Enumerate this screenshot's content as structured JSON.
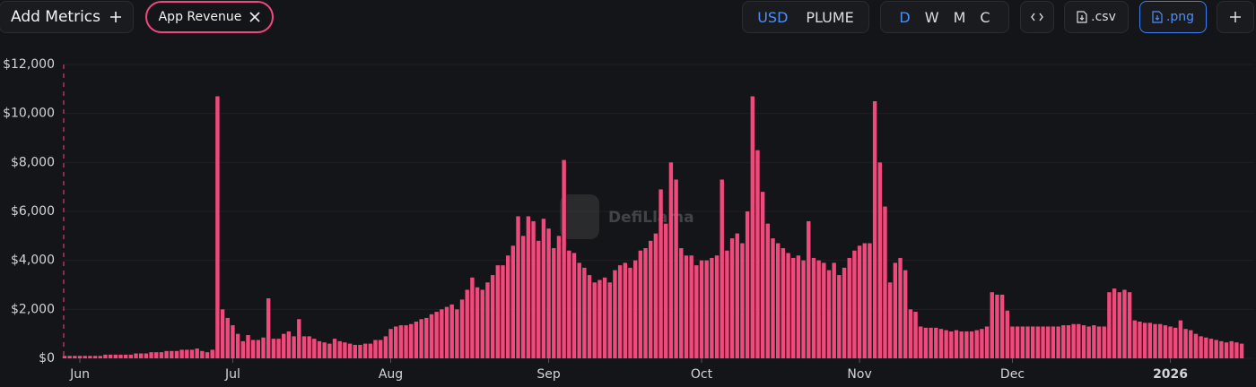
{
  "toolbar": {
    "add_metrics": "Add Metrics",
    "metric_chip": "App Revenue",
    "currency": [
      "USD",
      "PLUME"
    ],
    "intervals": [
      "D",
      "W",
      "M",
      "C"
    ],
    "csv": ".csv",
    "png": ".png"
  },
  "watermark": "DefiLlama",
  "chart_data": {
    "type": "bar",
    "color": "#f2497d",
    "grid": true,
    "categories": [
      null,
      null,
      null,
      "Jun",
      null,
      null,
      null,
      null,
      null,
      null,
      null,
      null,
      null,
      null,
      null,
      null,
      null,
      null,
      null,
      null,
      null,
      null,
      null,
      null,
      null,
      null,
      null,
      null,
      null,
      null,
      null,
      null,
      null,
      "Jul",
      null,
      null,
      null,
      null,
      null,
      null,
      null,
      null,
      null,
      null,
      null,
      null,
      null,
      null,
      null,
      null,
      null,
      null,
      null,
      null,
      null,
      null,
      null,
      null,
      null,
      null,
      null,
      null,
      null,
      null,
      "Aug",
      null,
      null,
      null,
      null,
      null,
      null,
      null,
      null,
      null,
      null,
      null,
      null,
      null,
      null,
      null,
      null,
      null,
      null,
      null,
      null,
      null,
      null,
      null,
      null,
      null,
      null,
      null,
      null,
      null,
      null,
      "Sep",
      null,
      null,
      null,
      null,
      null,
      null,
      null,
      null,
      null,
      null,
      null,
      null,
      null,
      null,
      null,
      null,
      null,
      null,
      null,
      null,
      null,
      null,
      null,
      null,
      null,
      null,
      null,
      null,
      null,
      "Oct",
      null,
      null,
      null,
      null,
      null,
      null,
      null,
      null,
      null,
      null,
      null,
      null,
      null,
      null,
      null,
      null,
      null,
      null,
      null,
      null,
      null,
      null,
      null,
      null,
      null,
      null,
      null,
      null,
      null,
      null,
      "Nov",
      null,
      null,
      null,
      null,
      null,
      null,
      null,
      null,
      null,
      null,
      null,
      null,
      null,
      null,
      null,
      null,
      null,
      null,
      null,
      null,
      null,
      null,
      null,
      null,
      null,
      null,
      null,
      null,
      null,
      "Dec",
      null,
      null,
      null,
      null,
      null,
      null,
      null,
      null,
      null,
      null,
      null,
      null,
      null,
      null,
      null,
      null,
      null,
      null,
      null,
      null,
      null,
      null,
      null,
      null,
      null,
      null,
      null,
      null,
      null,
      null,
      "2026",
      null,
      null,
      null,
      null,
      null,
      null,
      null,
      null,
      null,
      null,
      null,
      null,
      null,
      null
    ],
    "values": [
      100,
      100,
      100,
      100,
      100,
      100,
      100,
      100,
      150,
      150,
      150,
      150,
      150,
      150,
      200,
      200,
      200,
      250,
      250,
      250,
      300,
      300,
      300,
      350,
      350,
      350,
      400,
      300,
      250,
      350,
      10700,
      2000,
      1650,
      1350,
      1000,
      700,
      950,
      750,
      750,
      850,
      2450,
      800,
      800,
      1000,
      1100,
      900,
      1600,
      900,
      900,
      800,
      700,
      650,
      600,
      800,
      700,
      650,
      600,
      550,
      550,
      600,
      600,
      750,
      750,
      900,
      1200,
      1300,
      1350,
      1350,
      1400,
      1500,
      1600,
      1650,
      1800,
      1900,
      2000,
      2100,
      2200,
      2000,
      2400,
      2800,
      3300,
      2900,
      2800,
      3100,
      3400,
      3800,
      3800,
      4200,
      4600,
      5800,
      5000,
      5800,
      5600,
      4800,
      5700,
      5300,
      4500,
      5000,
      8100,
      4400,
      4300,
      3900,
      3700,
      3400,
      3100,
      3200,
      3300,
      3100,
      3600,
      3800,
      3900,
      3700,
      4000,
      4400,
      4500,
      4800,
      5100,
      6900,
      5500,
      8000,
      7300,
      4500,
      4200,
      4200,
      3800,
      4000,
      4000,
      4100,
      4200,
      7300,
      4400,
      4900,
      5100,
      4700,
      6000,
      10700,
      8500,
      6800,
      5500,
      4900,
      4700,
      4500,
      4300,
      4100,
      4200,
      4000,
      5600,
      4100,
      4000,
      3900,
      3600,
      3900,
      3400,
      3700,
      4100,
      4400,
      4600,
      4700,
      4700,
      10500,
      8000,
      6200,
      3100,
      3900,
      4100,
      3600,
      2000,
      1900,
      1300,
      1250,
      1250,
      1250,
      1200,
      1150,
      1100,
      1150,
      1100,
      1100,
      1100,
      1150,
      1200,
      1300,
      2700,
      2600,
      2600,
      1950,
      1300,
      1300,
      1300,
      1300,
      1300,
      1300,
      1300,
      1300,
      1300,
      1300,
      1350,
      1350,
      1400,
      1400,
      1350,
      1300,
      1350,
      1300,
      1300,
      2700,
      2850,
      2700,
      2800,
      2700,
      1550,
      1500,
      1450,
      1450,
      1400,
      1400,
      1350,
      1300,
      1250,
      1550,
      1200,
      1150,
      1000,
      900,
      850,
      800,
      750,
      700,
      650,
      700,
      650,
      600
    ],
    "ylim": [
      0,
      12000
    ],
    "yticks": [
      {
        "value": 0,
        "label": "$0"
      },
      {
        "value": 2000,
        "label": "$2,000"
      },
      {
        "value": 4000,
        "label": "$4,000"
      },
      {
        "value": 6000,
        "label": "$6,000"
      },
      {
        "value": 8000,
        "label": "$8,000"
      },
      {
        "value": 10000,
        "label": "$10,000"
      },
      {
        "value": 12000,
        "label": "$12,000"
      }
    ]
  }
}
